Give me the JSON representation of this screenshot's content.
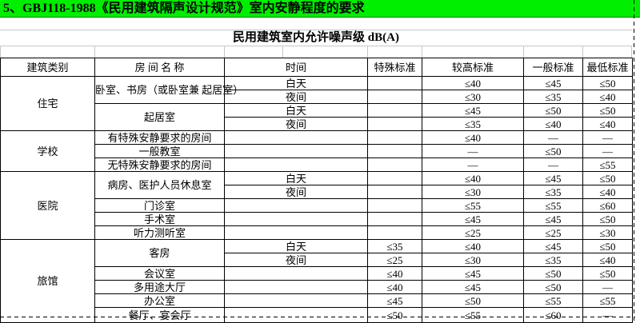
{
  "sheet": {
    "title": "5、GBJ118-1988《民用建筑隔声设计规范》室内安静程度的要求",
    "title_bg_color": "#00EE00"
  },
  "table": {
    "title": "民用建筑室内允许噪声级 dB(A)",
    "columns": [
      "建筑类别",
      "房 间 名 称",
      "时间",
      "特殊标准",
      "较高标准",
      "一般标准",
      "最低标准"
    ],
    "rows": [
      [
        {
          "t": "住宅",
          "rs": 4,
          "c": "cat"
        },
        {
          "t": "卧室、书房（或卧室兼\n起居室）",
          "rs": 2,
          "c": "room wrap"
        },
        {
          "t": "白天",
          "c": "time"
        },
        {
          "t": "",
          "c": "val"
        },
        {
          "t": "≤40",
          "c": "val"
        },
        {
          "t": "≤45",
          "c": "val"
        },
        {
          "t": "≤50",
          "c": "val"
        }
      ],
      [
        {
          "t": "夜间",
          "c": "time"
        },
        {
          "t": "",
          "c": "val"
        },
        {
          "t": "≤30",
          "c": "val"
        },
        {
          "t": "≤35",
          "c": "val"
        },
        {
          "t": "≤40",
          "c": "val"
        }
      ],
      [
        {
          "t": "起居室",
          "rs": 2,
          "c": "room"
        },
        {
          "t": "白天",
          "c": "time"
        },
        {
          "t": "",
          "c": "val"
        },
        {
          "t": "≤45",
          "c": "val"
        },
        {
          "t": "≤50",
          "c": "val"
        },
        {
          "t": "≤50",
          "c": "val"
        }
      ],
      [
        {
          "t": "夜间",
          "c": "time"
        },
        {
          "t": "",
          "c": "val"
        },
        {
          "t": "≤35",
          "c": "val"
        },
        {
          "t": "≤40",
          "c": "val"
        },
        {
          "t": "≤40",
          "c": "val"
        }
      ],
      [
        {
          "t": "学校",
          "rs": 3,
          "c": "cat"
        },
        {
          "t": "有特殊安静要求的房间",
          "c": "room"
        },
        {
          "t": "",
          "c": "time"
        },
        {
          "t": "",
          "c": "val"
        },
        {
          "t": "≤40",
          "c": "val"
        },
        {
          "t": "—",
          "c": "val"
        },
        {
          "t": "—",
          "c": "val"
        }
      ],
      [
        {
          "t": "一般教室",
          "c": "room"
        },
        {
          "t": "",
          "c": "time"
        },
        {
          "t": "",
          "c": "val"
        },
        {
          "t": "—",
          "c": "val"
        },
        {
          "t": "≤50",
          "c": "val"
        },
        {
          "t": "—",
          "c": "val"
        }
      ],
      [
        {
          "t": "无特殊安静要求的房间",
          "c": "room"
        },
        {
          "t": "",
          "c": "time"
        },
        {
          "t": "",
          "c": "val"
        },
        {
          "t": "—",
          "c": "val"
        },
        {
          "t": "—",
          "c": "val"
        },
        {
          "t": "≤55",
          "c": "val"
        }
      ],
      [
        {
          "t": "医院",
          "rs": 5,
          "c": "cat"
        },
        {
          "t": "病房、医护人员休息室",
          "rs": 2,
          "c": "room"
        },
        {
          "t": "白天",
          "c": "time"
        },
        {
          "t": "",
          "c": "val"
        },
        {
          "t": "≤40",
          "c": "val"
        },
        {
          "t": "≤45",
          "c": "val"
        },
        {
          "t": "≤50",
          "c": "val"
        }
      ],
      [
        {
          "t": "夜间",
          "c": "time"
        },
        {
          "t": "",
          "c": "val"
        },
        {
          "t": "≤30",
          "c": "val"
        },
        {
          "t": "≤35",
          "c": "val"
        },
        {
          "t": "≤40",
          "c": "val"
        }
      ],
      [
        {
          "t": "门诊室",
          "c": "room"
        },
        {
          "t": "",
          "c": "time"
        },
        {
          "t": "",
          "c": "val"
        },
        {
          "t": "≤55",
          "c": "val"
        },
        {
          "t": "≤55",
          "c": "val"
        },
        {
          "t": "≤60",
          "c": "val"
        }
      ],
      [
        {
          "t": "手术室",
          "c": "room"
        },
        {
          "t": "",
          "c": "time"
        },
        {
          "t": "",
          "c": "val"
        },
        {
          "t": "≤45",
          "c": "val"
        },
        {
          "t": "≤45",
          "c": "val"
        },
        {
          "t": "≤50",
          "c": "val"
        }
      ],
      [
        {
          "t": "听力测听室",
          "c": "room"
        },
        {
          "t": "",
          "c": "time"
        },
        {
          "t": "",
          "c": "val"
        },
        {
          "t": "≤25",
          "c": "val"
        },
        {
          "t": "≤25",
          "c": "val"
        },
        {
          "t": "≤30",
          "c": "val"
        }
      ],
      [
        {
          "t": "旅馆",
          "rs": 6,
          "c": "cat"
        },
        {
          "t": "客房",
          "rs": 2,
          "c": "room"
        },
        {
          "t": "白天",
          "c": "time"
        },
        {
          "t": "≤35",
          "c": "val"
        },
        {
          "t": "≤40",
          "c": "val"
        },
        {
          "t": "≤45",
          "c": "val"
        },
        {
          "t": "≤50",
          "c": "val"
        }
      ],
      [
        {
          "t": "夜间",
          "c": "time"
        },
        {
          "t": "≤25",
          "c": "val"
        },
        {
          "t": "≤30",
          "c": "val"
        },
        {
          "t": "≤35",
          "c": "val"
        },
        {
          "t": "≤40",
          "c": "val"
        }
      ],
      [
        {
          "t": "会议室",
          "c": "room"
        },
        {
          "t": "",
          "c": "time"
        },
        {
          "t": "≤40",
          "c": "val"
        },
        {
          "t": "≤45",
          "c": "val"
        },
        {
          "t": "≤50",
          "c": "val"
        },
        {
          "t": "≤50",
          "c": "val"
        }
      ],
      [
        {
          "t": "多用途大厅",
          "c": "room"
        },
        {
          "t": "",
          "c": "time"
        },
        {
          "t": "≤40",
          "c": "val"
        },
        {
          "t": "≤45",
          "c": "val"
        },
        {
          "t": "≤50",
          "c": "val"
        },
        {
          "t": "—",
          "c": "val"
        }
      ],
      [
        {
          "t": "办公室",
          "c": "room"
        },
        {
          "t": "",
          "c": "time"
        },
        {
          "t": "≤45",
          "c": "val"
        },
        {
          "t": "≤50",
          "c": "val"
        },
        {
          "t": "≤55",
          "c": "val"
        },
        {
          "t": "≤55",
          "c": "val"
        }
      ],
      [
        {
          "t": "餐厅、宴会厅",
          "c": "room"
        },
        {
          "t": "",
          "c": "time"
        },
        {
          "t": "≤50",
          "c": "val"
        },
        {
          "t": "≤55",
          "c": "val"
        },
        {
          "t": "≤60",
          "c": "val"
        },
        {
          "t": "—",
          "c": "val"
        }
      ]
    ]
  }
}
